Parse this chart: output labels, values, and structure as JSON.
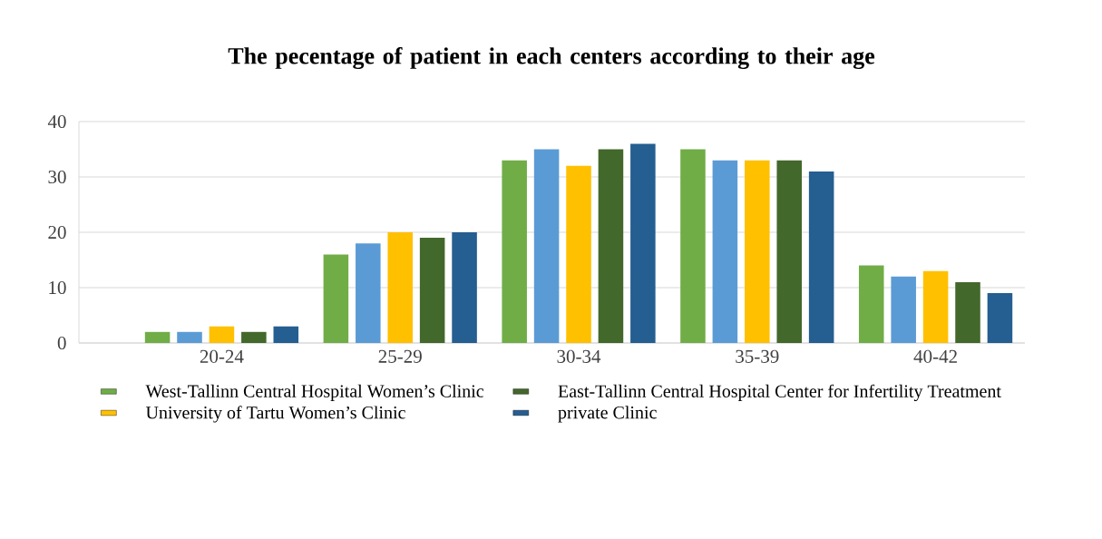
{
  "chart_data": {
    "type": "bar",
    "title": "The pecentage of patient in  each centers according to their age",
    "categories": [
      "20-24",
      "25-29",
      "30-34",
      "35-39",
      "40-42"
    ],
    "series": [
      {
        "name": "West-Tallinn Central Hospital Women’s Clinic",
        "color": "#70ad47",
        "values": [
          2,
          16,
          33,
          35,
          14
        ]
      },
      {
        "color": "#5b9bd5",
        "values": [
          2,
          18,
          35,
          33,
          12
        ]
      },
      {
        "name": "University of Tartu Women’s Clinic",
        "color": "#ffc000",
        "values": [
          3,
          20,
          32,
          33,
          13
        ]
      },
      {
        "name": "East-Tallinn Central Hospital Center for Infertility Treatment",
        "color": "#43682b",
        "values": [
          2,
          19,
          35,
          33,
          11
        ]
      },
      {
        "name": "private Clinic",
        "color": "#255e91",
        "values": [
          3,
          20,
          36,
          31,
          9
        ]
      }
    ],
    "ylim": [
      0,
      40
    ],
    "yticks": [
      0,
      10,
      20,
      30,
      40
    ],
    "grid": "y",
    "legend": "bottom"
  }
}
